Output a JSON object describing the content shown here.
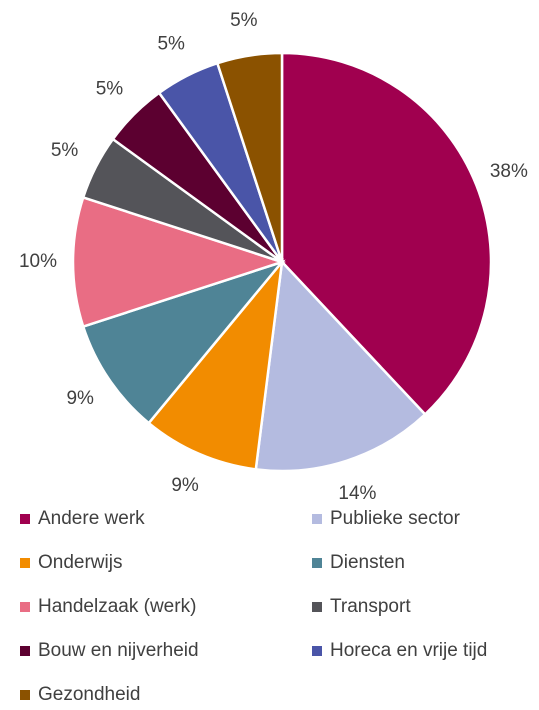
{
  "chart_data": {
    "type": "pie",
    "categories": [
      "Andere werk",
      "Publieke sector",
      "Onderwijs",
      "Diensten",
      "Handelzaak (werk)",
      "Transport",
      "Bouw en nijverheid",
      "Horeca en vrije tijd",
      "Gezondheid"
    ],
    "values": [
      38,
      14,
      9,
      9,
      10,
      5,
      5,
      5,
      5
    ],
    "value_labels": [
      "38%",
      "14%",
      "9%",
      "9%",
      "10%",
      "5%",
      "5%",
      "5%",
      "5%"
    ],
    "colors": [
      "#a0004f",
      "#b4bbe0",
      "#f28c00",
      "#4f8496",
      "#e96d84",
      "#545459",
      "#5c0030",
      "#4a55a8",
      "#8b5200"
    ],
    "legend": "bottom"
  }
}
